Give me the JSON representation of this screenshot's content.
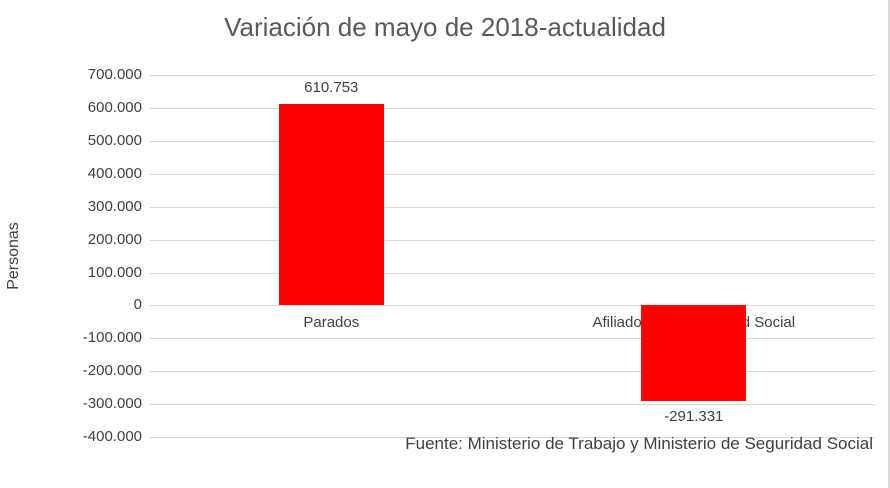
{
  "chart_data": {
    "type": "bar",
    "title": "Variación de mayo de 2018-actualidad",
    "ylabel": "Personas",
    "categories": [
      "Parados",
      "Afiliados a la Seguridad Social"
    ],
    "values": [
      610753,
      -291331
    ],
    "data_labels": [
      "610.753",
      "-291.331"
    ],
    "ylim": [
      -400000,
      700000
    ],
    "ytick_step": 100000,
    "ytick_labels": [
      "700.000",
      "600.000",
      "500.000",
      "400.000",
      "300.000",
      "200.000",
      "100.000",
      "0",
      "-100.000",
      "-200.000",
      "-300.000",
      "-400.000"
    ],
    "bar_color": "#ff0000",
    "grid_color": "#d9d9d9",
    "grid": true,
    "legend": "none",
    "source": "Fuente: Ministerio de Trabajo y Ministerio de Seguridad Social"
  }
}
